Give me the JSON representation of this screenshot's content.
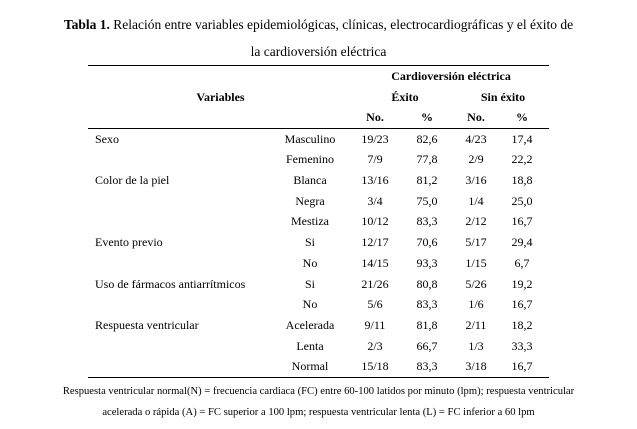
{
  "page": {
    "background_color": "#ffffff",
    "text_color": "#000000",
    "rule_color": "#000000"
  },
  "title": {
    "prefix": "Tabla 1.",
    "line1": "Relación entre variables epidemiológicas, clínicas, electrocardiográficas y el éxito de",
    "line2": "la cardioversión eléctrica"
  },
  "table": {
    "header": {
      "group": "Cardioversión eléctrica",
      "variables": "Variables",
      "exito": "Éxito",
      "sin_exito": "Sin  éxito",
      "no": "No.",
      "pct": "%"
    },
    "rows": [
      {
        "category": "Sexo",
        "sub": "Masculino",
        "exito_no": "19/23",
        "exito_pct": "82,6",
        "sin_no": "4/23",
        "sin_pct": "17,4"
      },
      {
        "category": "",
        "sub": "Femenino",
        "exito_no": "7/9",
        "exito_pct": "77,8",
        "sin_no": "2/9",
        "sin_pct": "22,2"
      },
      {
        "category": "Color de la piel",
        "sub": "Blanca",
        "exito_no": "13/16",
        "exito_pct": "81,2",
        "sin_no": "3/16",
        "sin_pct": "18,8"
      },
      {
        "category": "",
        "sub": "Negra",
        "exito_no": "3/4",
        "exito_pct": "75,0",
        "sin_no": "1/4",
        "sin_pct": "25,0"
      },
      {
        "category": "",
        "sub": "Mestiza",
        "exito_no": "10/12",
        "exito_pct": "83,3",
        "sin_no": "2/12",
        "sin_pct": "16,7"
      },
      {
        "category": "Evento  previo",
        "sub": "Si",
        "exito_no": "12/17",
        "exito_pct": "70,6",
        "sin_no": "5/17",
        "sin_pct": "29,4"
      },
      {
        "category": "",
        "sub": "No",
        "exito_no": "14/15",
        "exito_pct": "93,3",
        "sin_no": "1/15",
        "sin_pct": "6,7"
      },
      {
        "category": "Uso de fármacos antiarrítmicos",
        "sub": "Si",
        "exito_no": "21/26",
        "exito_pct": "80,8",
        "sin_no": "5/26",
        "sin_pct": "19,2"
      },
      {
        "category": "",
        "sub": "No",
        "exito_no": "5/6",
        "exito_pct": "83,3",
        "sin_no": "1/6",
        "sin_pct": "16,7"
      },
      {
        "category": "Respuesta  ventricular",
        "sub": "Acelerada",
        "exito_no": "9/11",
        "exito_pct": "81,8",
        "sin_no": "2/11",
        "sin_pct": "18,2"
      },
      {
        "category": "",
        "sub": "Lenta",
        "exito_no": "2/3",
        "exito_pct": "66,7",
        "sin_no": "1/3",
        "sin_pct": "33,3"
      },
      {
        "category": "",
        "sub": "Normal",
        "exito_no": "15/18",
        "exito_pct": "83,3",
        "sin_no": "3/18",
        "sin_pct": "16,7"
      }
    ]
  },
  "footnote": {
    "line1": "Respuesta ventricular normal(N)  = frecuencia cardiaca (FC) entre 60-100 latidos por minuto (lpm);  respuesta ventricular",
    "line2": "acelerada o rápida (A) = FC superior a 100 lpm;  respuesta ventricular lenta (L) = FC inferior a 60 lpm"
  }
}
